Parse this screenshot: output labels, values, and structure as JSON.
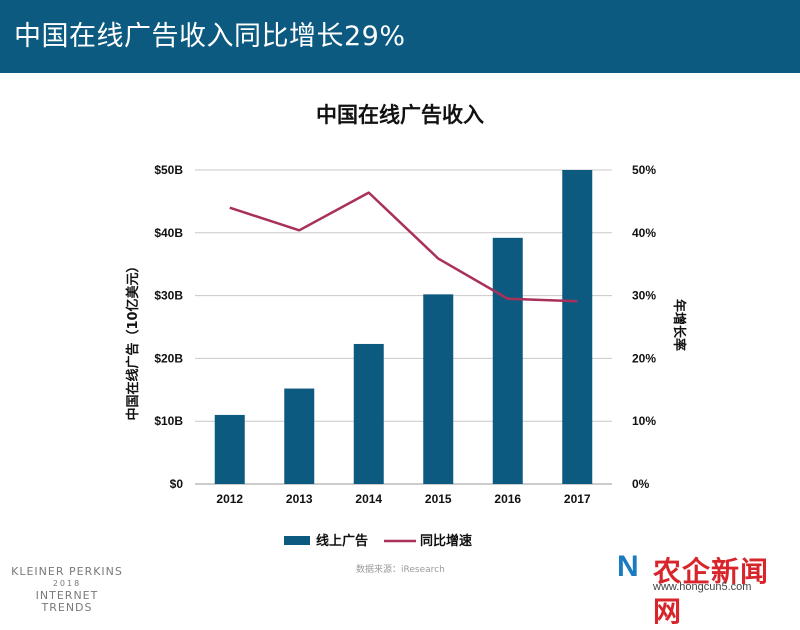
{
  "header": {
    "title": "中国在线广告收入同比增长29%"
  },
  "colors": {
    "header_bg": "#0d5a80",
    "bar": "#0d5a80",
    "line": "#a8305b"
  },
  "chart_data": {
    "type": "bar",
    "title": "中国在线广告收入",
    "categories": [
      "2012",
      "2013",
      "2014",
      "2015",
      "2016",
      "2017"
    ],
    "series": [
      {
        "name": "线上广告",
        "type": "bar",
        "axis": "left",
        "values": [
          11,
          15.2,
          22.3,
          30.2,
          39.2,
          50
        ]
      },
      {
        "name": "同比增速",
        "type": "line",
        "axis": "right",
        "values": [
          44,
          40.4,
          46.4,
          35.9,
          29.5,
          29.1
        ]
      }
    ],
    "ylabel_left": "中国在线广告（10亿美元）",
    "ylabel_right": "年增长率",
    "ylim_left": [
      0,
      50
    ],
    "ylim_right": [
      0,
      50
    ],
    "yticks_left": [
      "$0",
      "$10B",
      "$20B",
      "$30B",
      "$40B",
      "$50B"
    ],
    "yticks_right": [
      "0%",
      "10%",
      "20%",
      "30%",
      "40%",
      "50%"
    ],
    "grid": true,
    "legend": "bottom"
  },
  "footer": {
    "brand_line1": "KLEINER PERKINS",
    "brand_line2": "2018",
    "brand_line3": "INTERNET TRENDS",
    "source": "数据来源：iResearch"
  },
  "watermark": {
    "logo_mark": "N",
    "name": "农企新闻网",
    "url": "www.hongcun5.com"
  }
}
